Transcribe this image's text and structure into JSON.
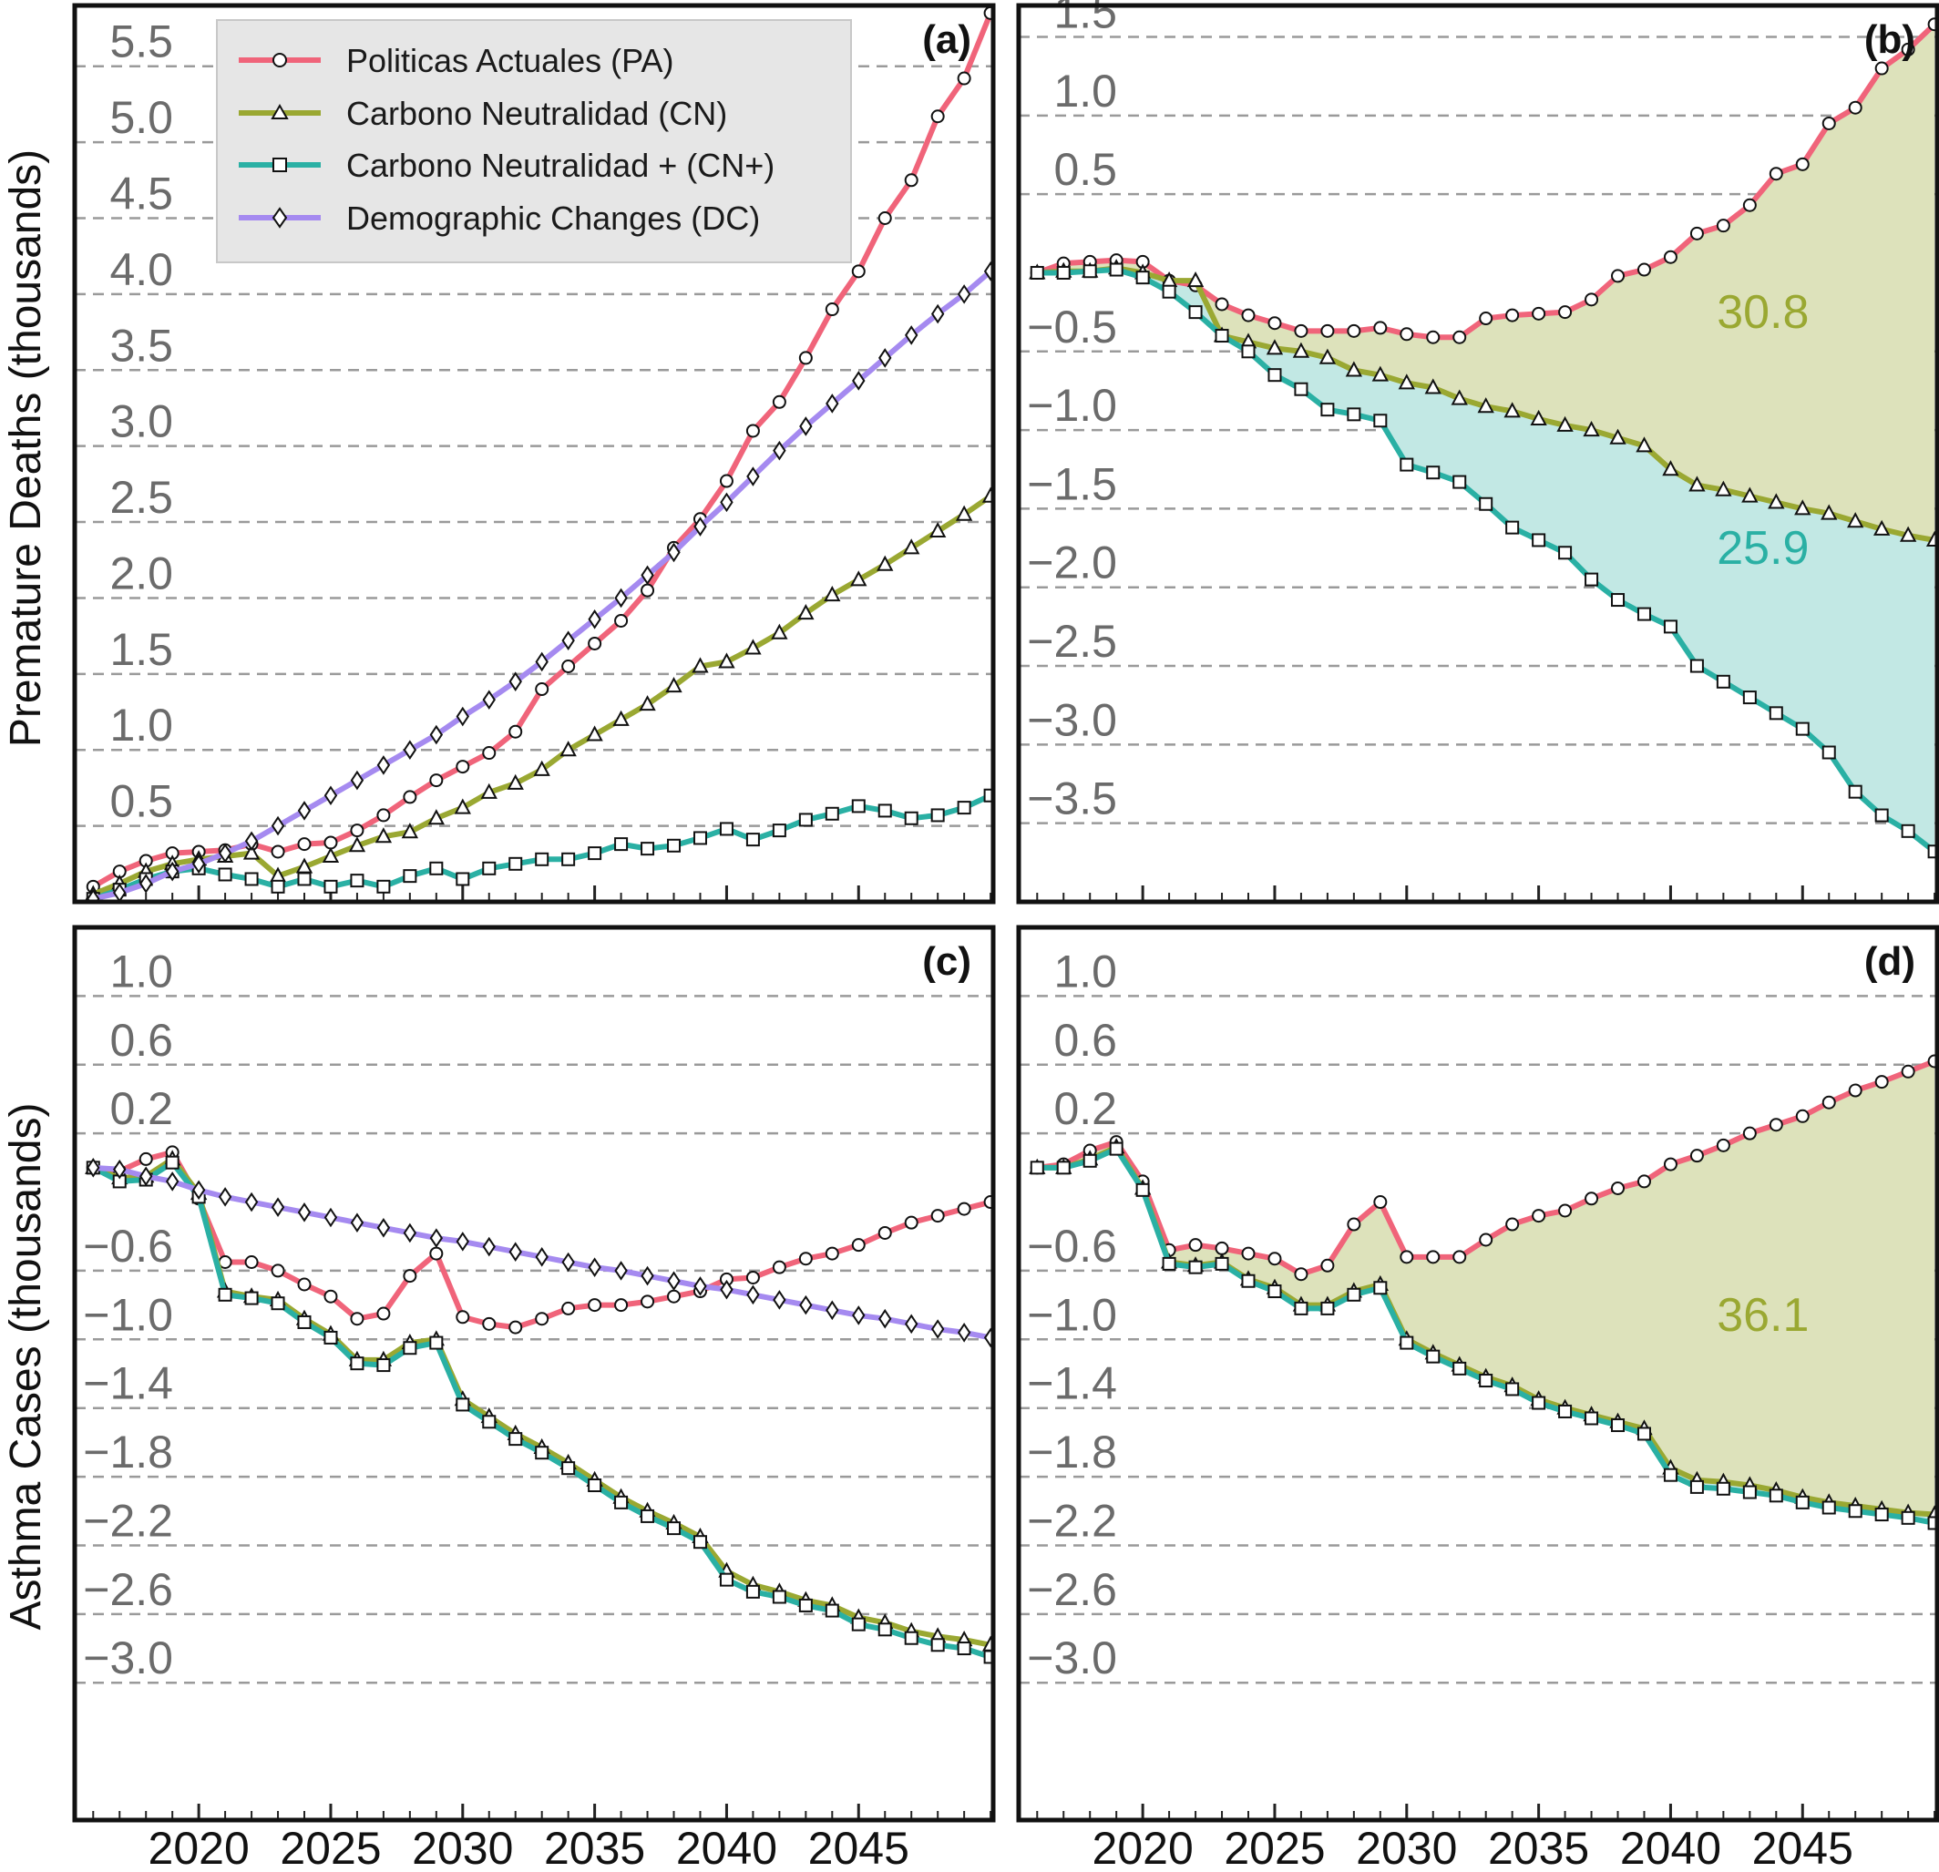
{
  "chart_data": [
    {
      "type": "line",
      "panel": "(a)",
      "ylabel": "Premature Deaths (thousands)",
      "x": [
        2016,
        2017,
        2018,
        2019,
        2020,
        2021,
        2022,
        2023,
        2024,
        2025,
        2026,
        2027,
        2028,
        2029,
        2030,
        2031,
        2032,
        2033,
        2034,
        2035,
        2036,
        2037,
        2038,
        2039,
        2040,
        2041,
        2042,
        2043,
        2044,
        2045,
        2046,
        2047,
        2048,
        2049,
        2050
      ],
      "xlim": [
        2015.3,
        2050.1
      ],
      "xticks": [
        2020,
        2025,
        2030,
        2035,
        2040,
        2045
      ],
      "ylim": [
        0.0,
        5.9
      ],
      "yticks": [
        0.5,
        1.0,
        1.5,
        2.0,
        2.5,
        3.0,
        3.5,
        4.0,
        4.5,
        5.0,
        5.5
      ],
      "ytick_labels": [
        "0.5",
        "1.0",
        "1.5",
        "2.0",
        "2.5",
        "3.0",
        "3.5",
        "4.0",
        "4.5",
        "5.0",
        "5.5"
      ],
      "grid": "horizontal dashed",
      "legend": {
        "placement": "top-left",
        "entries": [
          "Politicas Actuales (PA)",
          "Carbono Neutralidad (CN)",
          "Carbono Neutralidad + (CN+)",
          "Demographic Changes (DC)"
        ]
      },
      "series": [
        {
          "name": "Politicas Actuales (PA)",
          "color": "#f0647a",
          "marker": "circle",
          "values": [
            0.1,
            0.2,
            0.27,
            0.32,
            0.33,
            0.34,
            0.38,
            0.33,
            0.38,
            0.39,
            0.47,
            0.57,
            0.69,
            0.8,
            0.89,
            0.98,
            1.12,
            1.4,
            1.55,
            1.7,
            1.85,
            2.05,
            2.33,
            2.52,
            2.77,
            3.1,
            3.29,
            3.58,
            3.9,
            4.15,
            4.5,
            4.75,
            5.17,
            5.42,
            5.85
          ]
        },
        {
          "name": "Carbono Neutralidad (CN)",
          "color": "#9aa832",
          "marker": "triangle",
          "values": [
            0.05,
            0.12,
            0.2,
            0.25,
            0.28,
            0.3,
            0.32,
            0.17,
            0.23,
            0.3,
            0.37,
            0.43,
            0.46,
            0.55,
            0.62,
            0.72,
            0.78,
            0.87,
            1.0,
            1.1,
            1.2,
            1.3,
            1.42,
            1.55,
            1.58,
            1.67,
            1.77,
            1.9,
            2.02,
            2.12,
            2.22,
            2.33,
            2.44,
            2.55,
            2.67
          ]
        },
        {
          "name": "Carbono Neutralidad + (CN+)",
          "color": "#2ab0a4",
          "marker": "square",
          "values": [
            0.02,
            0.08,
            0.15,
            0.2,
            0.22,
            0.18,
            0.15,
            0.1,
            0.15,
            0.1,
            0.14,
            0.1,
            0.17,
            0.22,
            0.15,
            0.22,
            0.25,
            0.28,
            0.28,
            0.32,
            0.38,
            0.35,
            0.37,
            0.42,
            0.48,
            0.41,
            0.47,
            0.54,
            0.58,
            0.63,
            0.6,
            0.55,
            0.57,
            0.62,
            0.7
          ]
        },
        {
          "name": "Demographic Changes (DC)",
          "color": "#a58af0",
          "marker": "diamond",
          "values": [
            0.02,
            0.06,
            0.12,
            0.2,
            0.25,
            0.32,
            0.4,
            0.5,
            0.6,
            0.7,
            0.8,
            0.9,
            1.0,
            1.1,
            1.22,
            1.33,
            1.45,
            1.58,
            1.72,
            1.86,
            2.0,
            2.15,
            2.3,
            2.47,
            2.63,
            2.8,
            2.97,
            3.13,
            3.28,
            3.43,
            3.58,
            3.73,
            3.87,
            4.0,
            4.15
          ]
        }
      ]
    },
    {
      "type": "area",
      "panel": "(b)",
      "x": [
        2016,
        2017,
        2018,
        2019,
        2020,
        2021,
        2022,
        2023,
        2024,
        2025,
        2026,
        2027,
        2028,
        2029,
        2030,
        2031,
        2032,
        2033,
        2034,
        2035,
        2036,
        2037,
        2038,
        2039,
        2040,
        2041,
        2042,
        2043,
        2044,
        2045,
        2046,
        2047,
        2048,
        2049,
        2050
      ],
      "xlim": [
        2015.3,
        2050.1
      ],
      "xticks": [
        2020,
        2025,
        2030,
        2035,
        2040,
        2045
      ],
      "ylim": [
        -4.0,
        1.7
      ],
      "yticks": [
        -3.5,
        -3.0,
        -2.5,
        -2.0,
        -1.5,
        -1.0,
        -0.5,
        0.5,
        1.0,
        1.5
      ],
      "ytick_labels": [
        "−3.5",
        "−3.0",
        "−2.5",
        "−2.0",
        "−1.5",
        "−1.0",
        "−0.5",
        "0.5",
        "1.0",
        "1.5"
      ],
      "grid": "horizontal dashed",
      "annotations": [
        {
          "text": "30.8",
          "color": "#9aa832",
          "x": 2043.5,
          "y": -0.35
        },
        {
          "text": "25.9",
          "color": "#2ab0a4",
          "x": 2043.5,
          "y": -1.85
        }
      ],
      "fills": [
        {
          "between": [
            "PA",
            "CN"
          ],
          "color": "#dde2bb"
        },
        {
          "between": [
            "CN",
            "CN+"
          ],
          "color": "#c2e8e4"
        }
      ],
      "series": [
        {
          "name": "PA",
          "color": "#f0647a",
          "marker": "circle",
          "values": [
            0.0,
            0.06,
            0.07,
            0.08,
            0.07,
            -0.05,
            -0.08,
            -0.2,
            -0.27,
            -0.32,
            -0.37,
            -0.37,
            -0.37,
            -0.35,
            -0.39,
            -0.41,
            -0.41,
            -0.29,
            -0.27,
            -0.26,
            -0.25,
            -0.17,
            -0.02,
            0.02,
            0.1,
            0.25,
            0.3,
            0.43,
            0.63,
            0.69,
            0.95,
            1.05,
            1.3,
            1.42,
            1.58
          ]
        },
        {
          "name": "CN",
          "color": "#9aa832",
          "marker": "triangle",
          "values": [
            0.0,
            0.01,
            0.01,
            0.03,
            0.0,
            -0.05,
            -0.05,
            -0.4,
            -0.44,
            -0.48,
            -0.5,
            -0.54,
            -0.62,
            -0.65,
            -0.7,
            -0.73,
            -0.8,
            -0.85,
            -0.88,
            -0.93,
            -0.97,
            -1.0,
            -1.05,
            -1.1,
            -1.25,
            -1.35,
            -1.38,
            -1.42,
            -1.46,
            -1.5,
            -1.53,
            -1.58,
            -1.63,
            -1.67,
            -1.7
          ]
        },
        {
          "name": "CN+",
          "color": "#2ab0a4",
          "marker": "square",
          "values": [
            0.0,
            0.0,
            0.01,
            0.02,
            -0.03,
            -0.12,
            -0.25,
            -0.4,
            -0.5,
            -0.65,
            -0.74,
            -0.87,
            -0.9,
            -0.94,
            -1.22,
            -1.27,
            -1.33,
            -1.47,
            -1.62,
            -1.7,
            -1.78,
            -1.95,
            -2.08,
            -2.17,
            -2.25,
            -2.5,
            -2.6,
            -2.7,
            -2.8,
            -2.9,
            -3.05,
            -3.3,
            -3.45,
            -3.55,
            -3.68
          ]
        }
      ]
    },
    {
      "type": "line",
      "panel": "(c)",
      "ylabel": "Asthma Cases (thousands)",
      "x": [
        2016,
        2017,
        2018,
        2019,
        2020,
        2021,
        2022,
        2023,
        2024,
        2025,
        2026,
        2027,
        2028,
        2029,
        2030,
        2031,
        2032,
        2033,
        2034,
        2035,
        2036,
        2037,
        2038,
        2039,
        2040,
        2041,
        2042,
        2043,
        2044,
        2045,
        2046,
        2047,
        2048,
        2049,
        2050
      ],
      "xlim": [
        2015.3,
        2050.1
      ],
      "xticks": [
        2020,
        2025,
        2030,
        2035,
        2040,
        2045
      ],
      "ylim": [
        -3.8,
        1.4
      ],
      "yticks": [
        -3.0,
        -2.6,
        -2.2,
        -1.8,
        -1.4,
        -1.0,
        -0.6,
        0.2,
        0.6,
        1.0
      ],
      "ytick_labels": [
        "−3.0",
        "−2.6",
        "−2.2",
        "−1.8",
        "−1.4",
        "−1.0",
        "−0.6",
        "0.2",
        "0.6",
        "1.0"
      ],
      "grid": "horizontal dashed",
      "series": [
        {
          "name": "PA",
          "color": "#f0647a",
          "marker": "circle",
          "values": [
            0.0,
            -0.02,
            0.05,
            0.09,
            -0.18,
            -0.55,
            -0.55,
            -0.6,
            -0.68,
            -0.75,
            -0.88,
            -0.85,
            -0.63,
            -0.5,
            -0.87,
            -0.91,
            -0.93,
            -0.88,
            -0.82,
            -0.8,
            -0.8,
            -0.78,
            -0.75,
            -0.72,
            -0.65,
            -0.64,
            -0.58,
            -0.53,
            -0.5,
            -0.45,
            -0.38,
            -0.32,
            -0.28,
            -0.24,
            -0.2
          ]
        },
        {
          "name": "CN",
          "color": "#9aa832",
          "marker": "triangle",
          "values": [
            0.0,
            -0.06,
            -0.05,
            0.05,
            -0.15,
            -0.72,
            -0.75,
            -0.77,
            -0.88,
            -0.97,
            -1.12,
            -1.12,
            -1.02,
            -1.0,
            -1.35,
            -1.45,
            -1.55,
            -1.63,
            -1.72,
            -1.82,
            -1.92,
            -2.0,
            -2.07,
            -2.15,
            -2.35,
            -2.43,
            -2.47,
            -2.52,
            -2.55,
            -2.62,
            -2.65,
            -2.7,
            -2.73,
            -2.75,
            -2.78
          ]
        },
        {
          "name": "CN+",
          "color": "#2ab0a4",
          "marker": "square",
          "values": [
            0.0,
            -0.08,
            -0.07,
            0.03,
            -0.17,
            -0.74,
            -0.76,
            -0.79,
            -0.9,
            -0.99,
            -1.14,
            -1.15,
            -1.05,
            -1.02,
            -1.38,
            -1.48,
            -1.58,
            -1.66,
            -1.75,
            -1.85,
            -1.95,
            -2.03,
            -2.1,
            -2.18,
            -2.4,
            -2.47,
            -2.5,
            -2.55,
            -2.58,
            -2.66,
            -2.69,
            -2.74,
            -2.78,
            -2.8,
            -2.85
          ]
        },
        {
          "name": "DC",
          "color": "#a58af0",
          "marker": "diamond",
          "values": [
            0.0,
            -0.01,
            -0.05,
            -0.08,
            -0.13,
            -0.17,
            -0.2,
            -0.23,
            -0.26,
            -0.29,
            -0.32,
            -0.35,
            -0.38,
            -0.41,
            -0.43,
            -0.46,
            -0.49,
            -0.52,
            -0.55,
            -0.58,
            -0.6,
            -0.63,
            -0.66,
            -0.69,
            -0.71,
            -0.74,
            -0.77,
            -0.8,
            -0.83,
            -0.86,
            -0.88,
            -0.91,
            -0.94,
            -0.96,
            -0.99
          ]
        }
      ]
    },
    {
      "type": "area",
      "panel": "(d)",
      "x": [
        2016,
        2017,
        2018,
        2019,
        2020,
        2021,
        2022,
        2023,
        2024,
        2025,
        2026,
        2027,
        2028,
        2029,
        2030,
        2031,
        2032,
        2033,
        2034,
        2035,
        2036,
        2037,
        2038,
        2039,
        2040,
        2041,
        2042,
        2043,
        2044,
        2045,
        2046,
        2047,
        2048,
        2049,
        2050
      ],
      "xlim": [
        2015.3,
        2050.1
      ],
      "xticks": [
        2020,
        2025,
        2030,
        2035,
        2040,
        2045
      ],
      "ylim": [
        -3.8,
        1.4
      ],
      "yticks": [
        -3.0,
        -2.6,
        -2.2,
        -1.8,
        -1.4,
        -1.0,
        -0.6,
        0.2,
        0.6,
        1.0
      ],
      "ytick_labels": [
        "−3.0",
        "−2.6",
        "−2.2",
        "−1.8",
        "−1.4",
        "−1.0",
        "−0.6",
        "0.2",
        "0.6",
        "1.0"
      ],
      "grid": "horizontal dashed",
      "annotations": [
        {
          "text": "36.1",
          "color": "#9aa832",
          "x": 2043.5,
          "y": -0.95
        }
      ],
      "fills": [
        {
          "between": [
            "PA",
            "CN"
          ],
          "color": "#dde2bb"
        },
        {
          "between": [
            "CN",
            "CN+"
          ],
          "color": "#c2e8e4"
        }
      ],
      "series": [
        {
          "name": "PA",
          "color": "#f0647a",
          "marker": "circle",
          "values": [
            0.0,
            0.02,
            0.1,
            0.15,
            -0.08,
            -0.48,
            -0.45,
            -0.47,
            -0.5,
            -0.53,
            -0.62,
            -0.57,
            -0.33,
            -0.2,
            -0.52,
            -0.52,
            -0.52,
            -0.42,
            -0.33,
            -0.28,
            -0.25,
            -0.18,
            -0.12,
            -0.08,
            0.02,
            0.07,
            0.13,
            0.2,
            0.25,
            0.3,
            0.38,
            0.45,
            0.5,
            0.56,
            0.62
          ]
        },
        {
          "name": "CN",
          "color": "#9aa832",
          "marker": "triangle",
          "values": [
            0.0,
            0.0,
            0.05,
            0.12,
            -0.12,
            -0.55,
            -0.57,
            -0.55,
            -0.65,
            -0.7,
            -0.8,
            -0.8,
            -0.72,
            -0.68,
            -1.0,
            -1.08,
            -1.15,
            -1.22,
            -1.27,
            -1.35,
            -1.4,
            -1.44,
            -1.48,
            -1.52,
            -1.75,
            -1.82,
            -1.83,
            -1.85,
            -1.88,
            -1.92,
            -1.95,
            -1.97,
            -1.99,
            -2.01,
            -2.02
          ]
        },
        {
          "name": "CN+",
          "color": "#2ab0a4",
          "marker": "square",
          "values": [
            0.0,
            0.0,
            0.04,
            0.11,
            -0.13,
            -0.56,
            -0.58,
            -0.56,
            -0.66,
            -0.72,
            -0.82,
            -0.82,
            -0.74,
            -0.7,
            -1.02,
            -1.1,
            -1.17,
            -1.24,
            -1.29,
            -1.37,
            -1.42,
            -1.46,
            -1.5,
            -1.55,
            -1.79,
            -1.86,
            -1.87,
            -1.89,
            -1.91,
            -1.95,
            -1.98,
            -2.0,
            -2.02,
            -2.04,
            -2.07
          ]
        }
      ]
    }
  ]
}
